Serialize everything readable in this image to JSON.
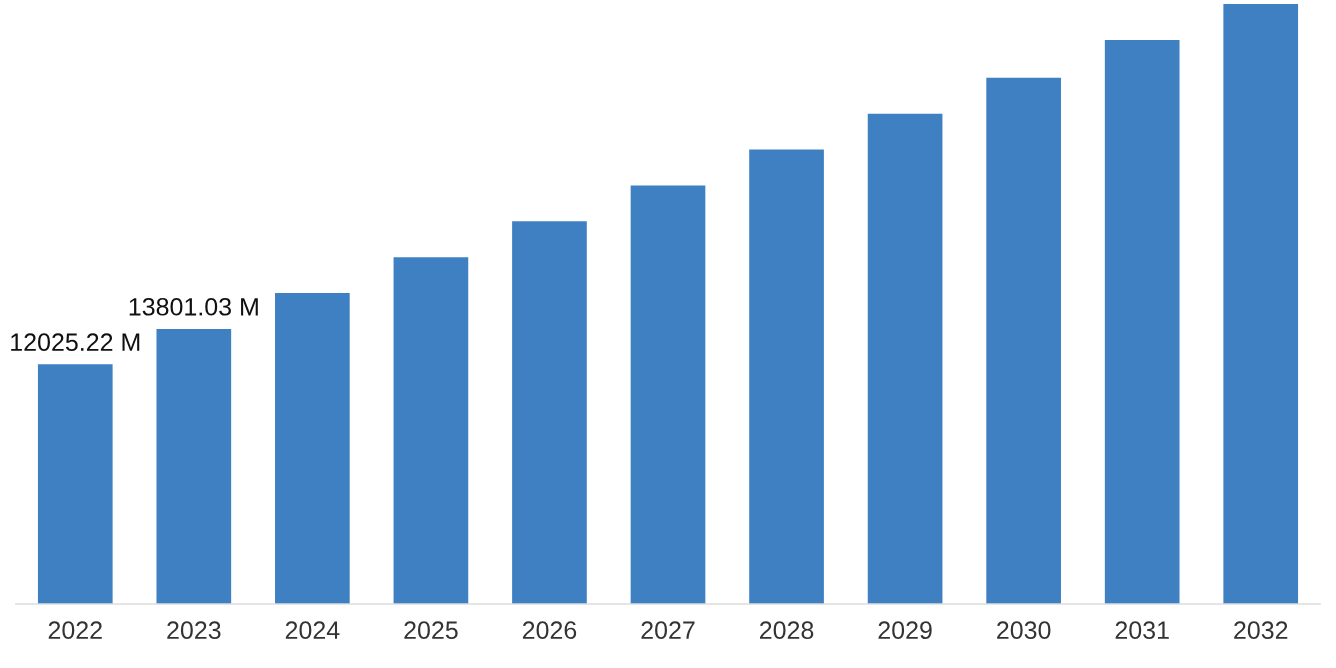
{
  "chart_data": {
    "type": "bar",
    "categories": [
      "2022",
      "2023",
      "2024",
      "2025",
      "2026",
      "2027",
      "2028",
      "2029",
      "2030",
      "2031",
      "2032"
    ],
    "values": [
      12025.22,
      13801.03,
      15600,
      17400,
      19200,
      21000,
      22800,
      24600,
      26400,
      28300,
      30100
    ],
    "value_labels": [
      "12025.22 M",
      "13801.03 M",
      null,
      null,
      null,
      null,
      null,
      null,
      null,
      null,
      null
    ],
    "ylim": [
      0,
      30100
    ],
    "tick_labels": "x",
    "color": "#3f80c2",
    "grid": false,
    "legend": false
  }
}
